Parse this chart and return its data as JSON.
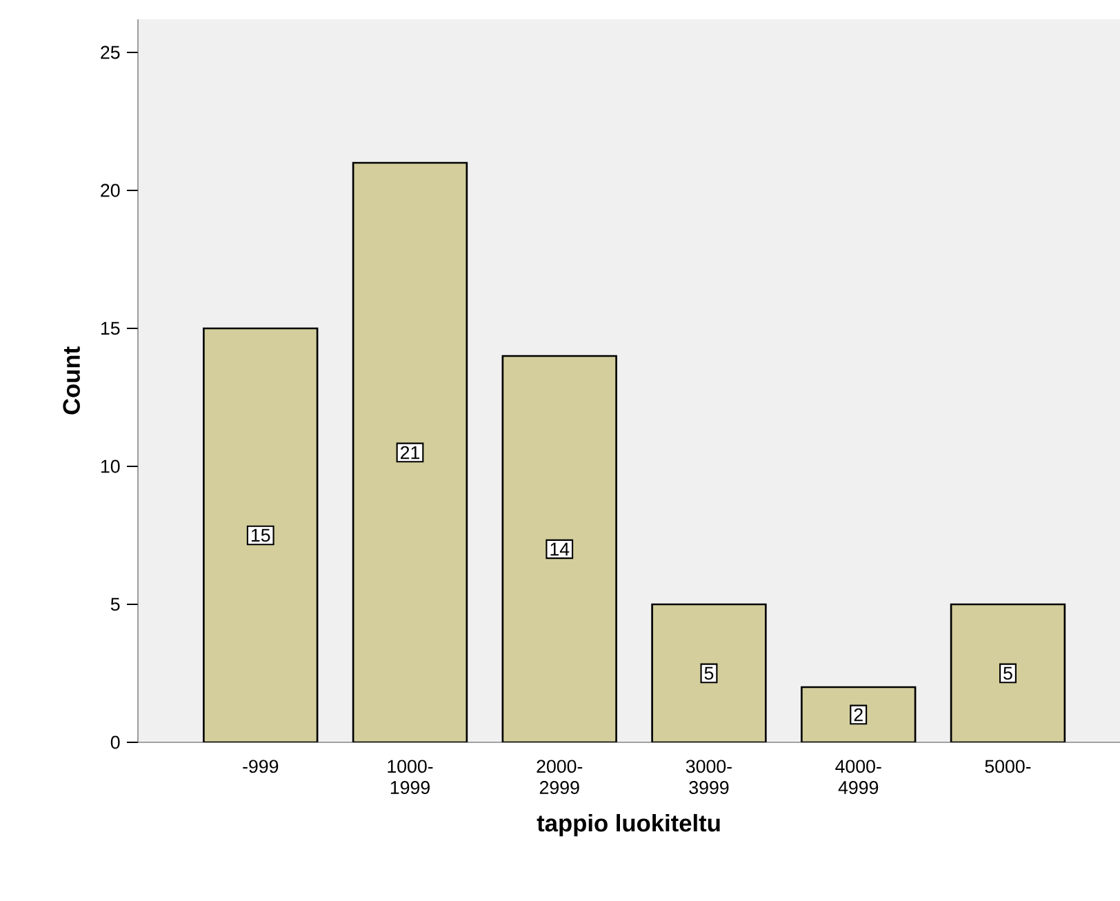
{
  "chart_data": {
    "type": "bar",
    "xlabel": "tappio luokiteltu",
    "ylabel": "Count",
    "categories": [
      "-999",
      "1000-1999",
      "2000-2999",
      "3000-3999",
      "4000-4999",
      "5000-"
    ],
    "values": [
      15,
      21,
      14,
      5,
      2,
      5
    ],
    "color": "#d3ce9c",
    "ylim": [
      0,
      26.2
    ],
    "yticks": [
      0,
      5,
      10,
      15,
      20,
      25
    ],
    "data_labels": true
  }
}
